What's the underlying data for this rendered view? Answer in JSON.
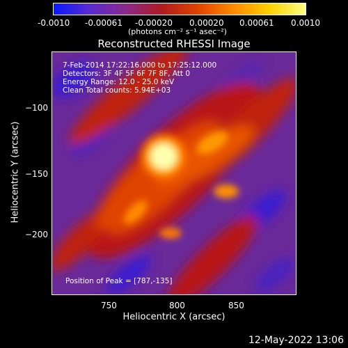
{
  "colorbar": {
    "tick_labels": [
      "-0.0010",
      "-0.00061",
      "-0.00020",
      "0.00020",
      "0.00061",
      "0.0010"
    ],
    "units_label": "(photons cm⁻² s⁻¹ asec⁻²)",
    "colors": [
      "#0a1aff",
      "#5a2bd0",
      "#8a2a8c",
      "#b01a20",
      "#e04400",
      "#ff8a00",
      "#ffd000",
      "#ffff80"
    ]
  },
  "plot": {
    "title": "Reconstructed RHESSI Image",
    "xlabel": "Heliocentric X (arcsec)",
    "ylabel": "Heliocentric Y (arcsec)",
    "x_ticks": [
      "750",
      "800",
      "850"
    ],
    "y_ticks": [
      "−100",
      "−150",
      "−200"
    ],
    "info_lines": [
      " 7-Feb-2014 17:22:16.000 to 17:25:12.000",
      "Detectors: 3F 4F 5F 6F 7F 8F, Att 0",
      "Energy Range: 12.0 - 25.0 keV",
      "Clean    Total counts: 5.94E+03"
    ],
    "peak_text": "Position of Peak = [787,-135]"
  },
  "footer": {
    "timestamp": "12-May-2022 13:06"
  }
}
